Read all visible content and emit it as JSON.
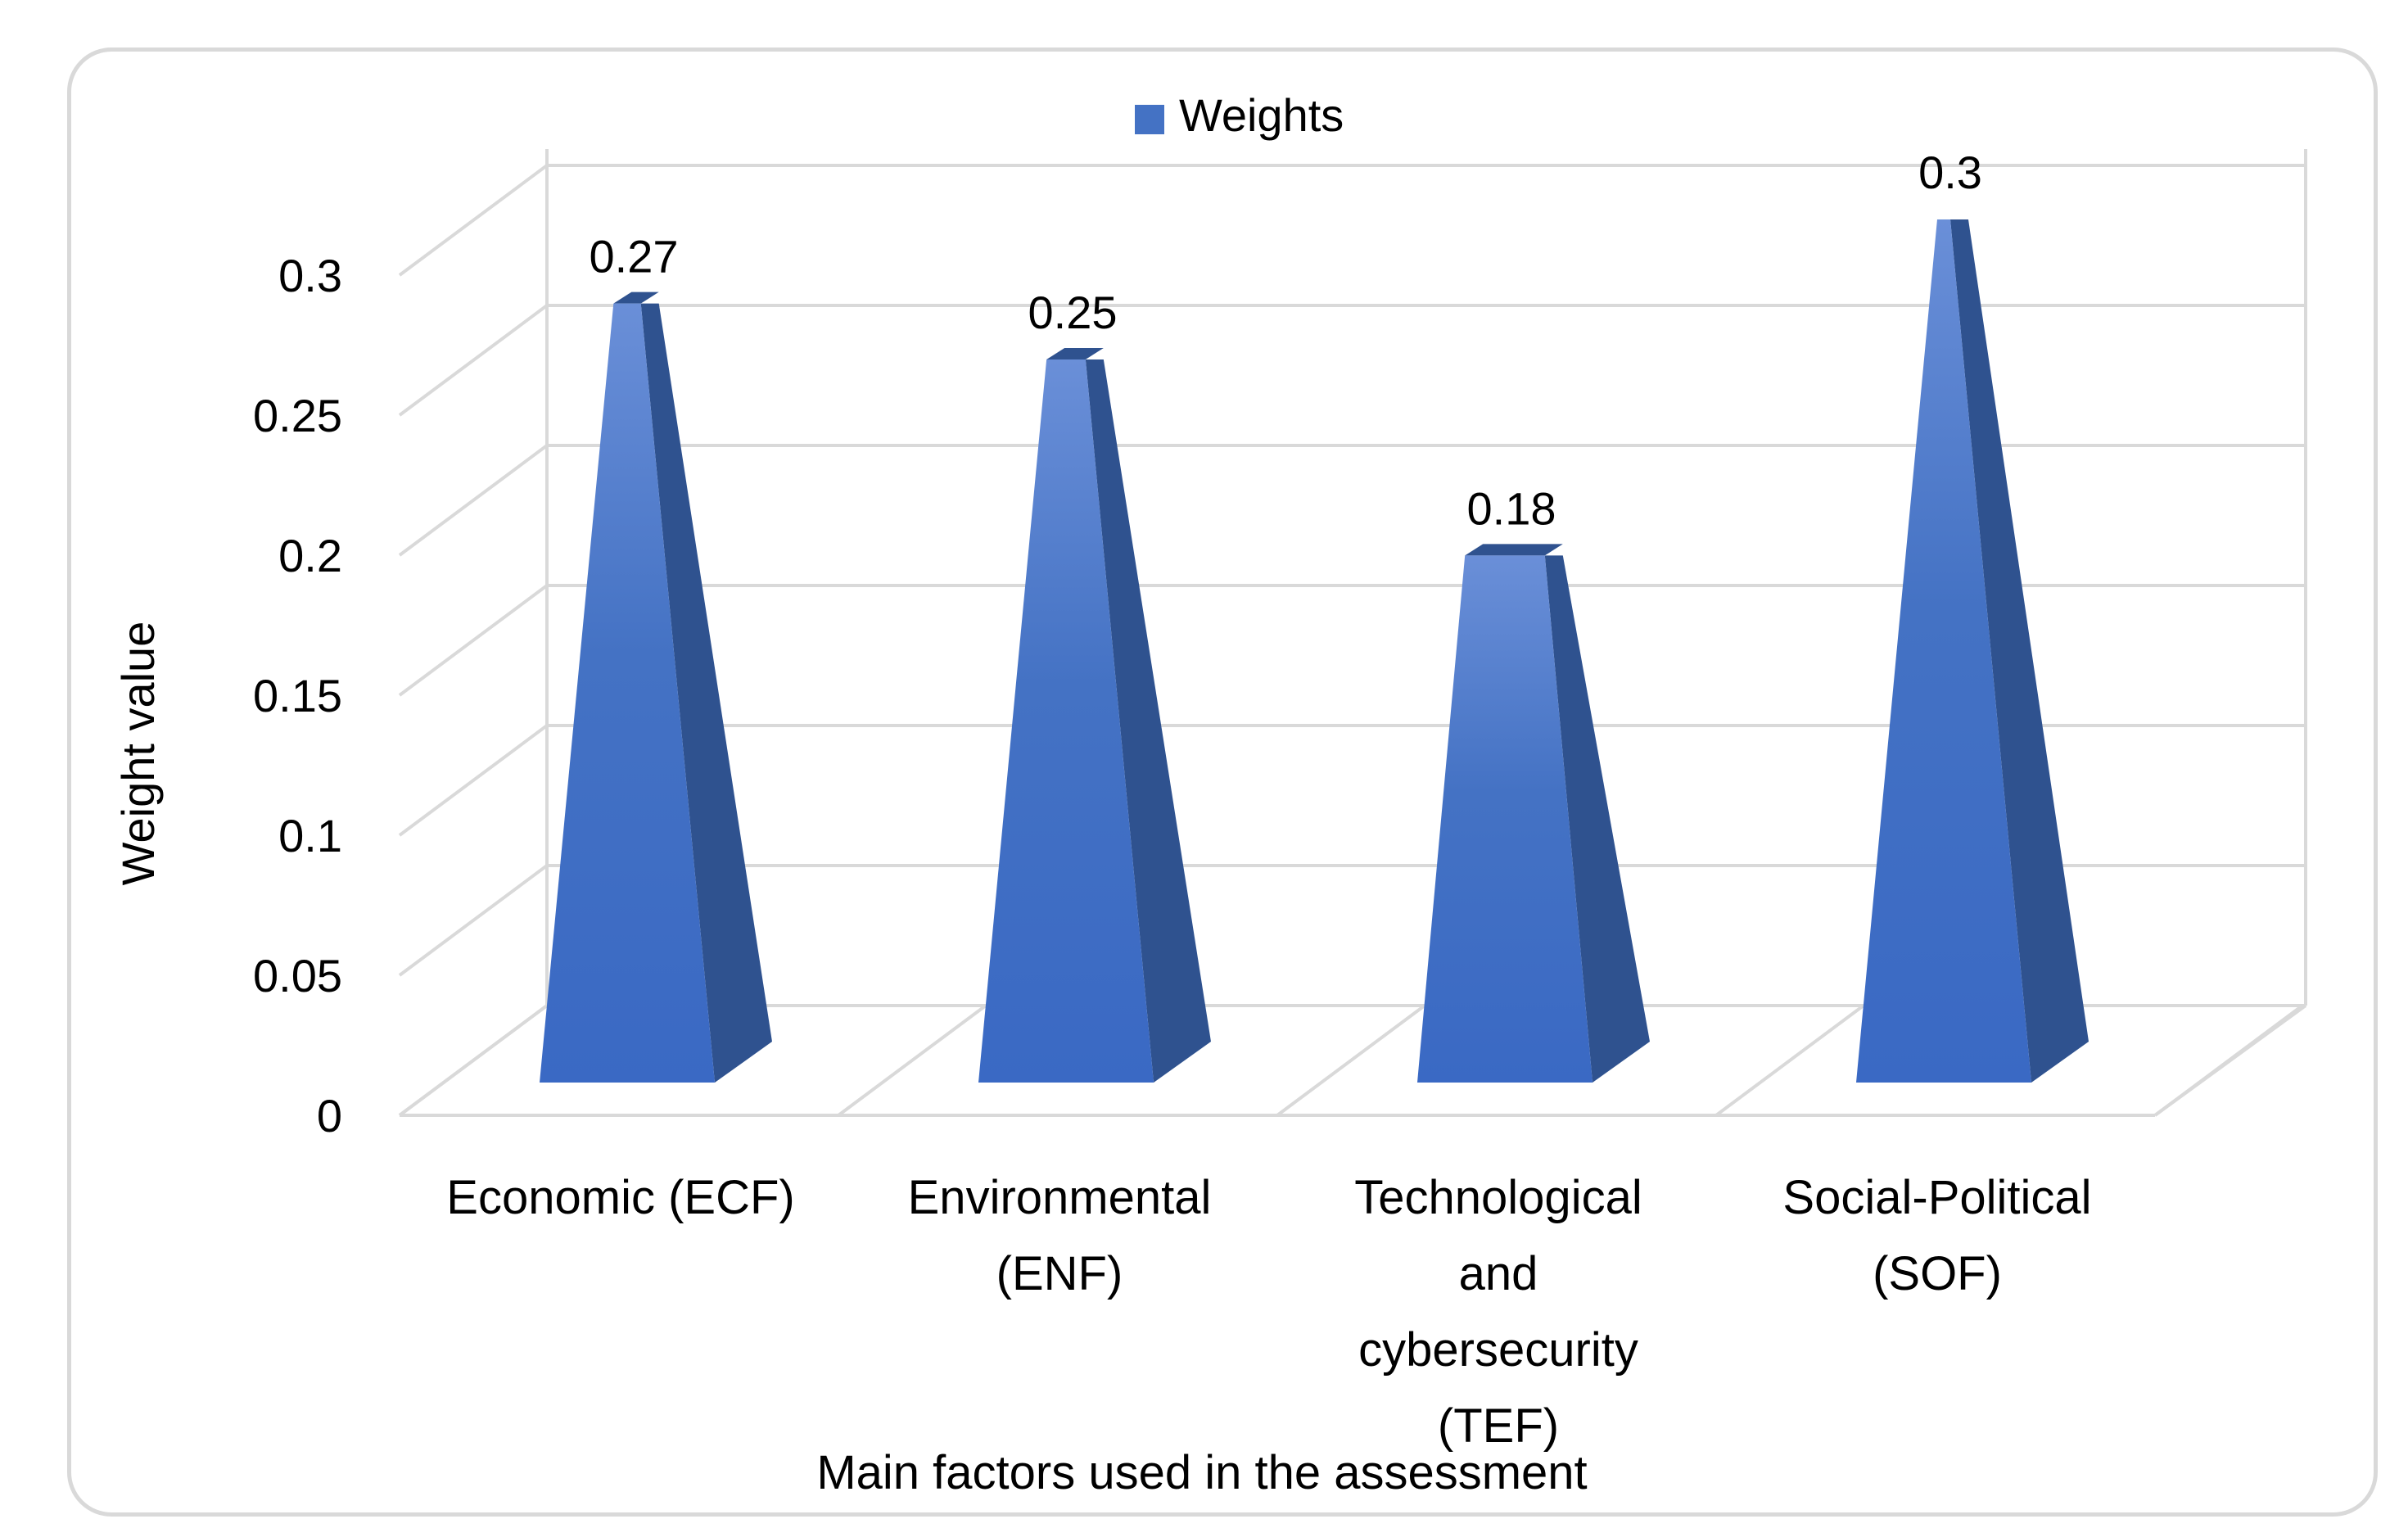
{
  "chart_data": {
    "type": "bar",
    "style": "3d-pyramid",
    "legend_position": "top",
    "series": [
      {
        "name": "Weights",
        "values": [
          0.27,
          0.25,
          0.18,
          0.3
        ]
      }
    ],
    "categories": [
      [
        "Economic (ECF)"
      ],
      [
        "Environmental",
        "(ENF)"
      ],
      [
        "Technological",
        "and",
        "cybersecurity",
        "(TEF)"
      ],
      [
        "Social-Political",
        "(SOF)"
      ]
    ],
    "data_labels": [
      "0.27",
      "0.25",
      "0.18",
      "0.3"
    ],
    "title": "",
    "xlabel": "Main factors used in the assessment",
    "ylabel": "Weight value",
    "ylim": [
      0,
      0.3
    ],
    "yticks": [
      "0",
      "0.05",
      "0.1",
      "0.15",
      "0.2",
      "0.25",
      "0.3"
    ],
    "grid": true,
    "colors": {
      "front": "#4472C4",
      "side": "#2F528F",
      "top": "#5B83CF",
      "grid": "#d9d9d9"
    }
  }
}
